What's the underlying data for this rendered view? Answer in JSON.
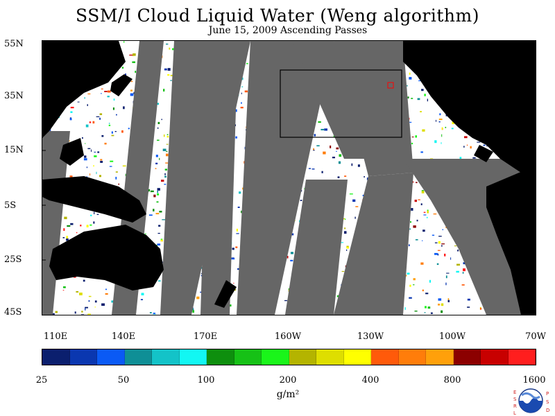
{
  "title": "SSM/I Cloud Liquid Water (Weng algorithm)",
  "subtitle": "June 15, 2009  Ascending Passes",
  "lat_labels": [
    "55N",
    "35N",
    "15N",
    "5S",
    "25S",
    "45S"
  ],
  "lon_labels": [
    "110E",
    "140E",
    "170E",
    "160W",
    "130W",
    "100W",
    "70W"
  ],
  "colorbar": {
    "colors": [
      "#0b1f6e",
      "#0a37b0",
      "#0a5af5",
      "#0f8f96",
      "#13c3c8",
      "#12f7f3",
      "#0e8f0e",
      "#16c116",
      "#1af51a",
      "#b4b400",
      "#dede00",
      "#ffff00",
      "#ff5a0a",
      "#ff7d0a",
      "#ffa00a",
      "#8c0000",
      "#c80000",
      "#ff1e1e"
    ],
    "tick_labels": [
      "25",
      "50",
      "100",
      "200",
      "400",
      "800",
      "1600"
    ],
    "unit_label": "g/m²"
  },
  "logo": {
    "left_letters": "ESRL",
    "right_letters": "PSD",
    "center_text": "NOAA"
  }
}
